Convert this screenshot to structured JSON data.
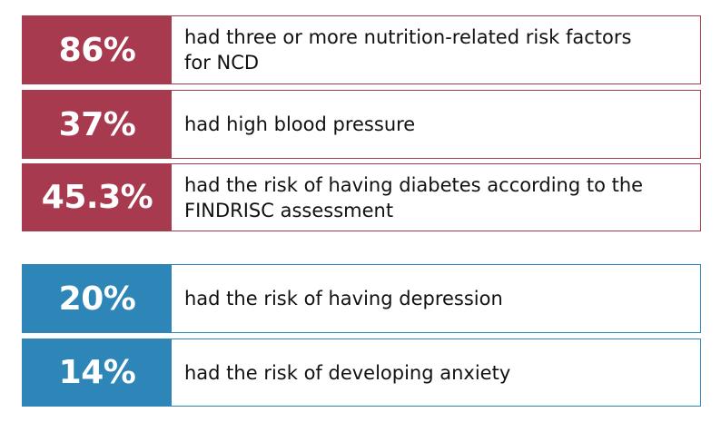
{
  "colors": {
    "red_group": "#a83a50",
    "blue_group": "#2e86b8"
  },
  "stats": [
    {
      "value": "86%",
      "line1": "had three or more nutrition-related risk factors",
      "line2": "for NCD"
    },
    {
      "value": "37%",
      "line1": "had high blood pressure",
      "line2": ""
    },
    {
      "value": "45.3%",
      "line1": "had the risk of having diabetes according to the",
      "line2": "FINDRISC assessment"
    },
    {
      "value": "20%",
      "line1": "had the risk of having depression",
      "line2": ""
    },
    {
      "value": "14%",
      "line1": "had the risk of developing anxiety",
      "line2": ""
    }
  ]
}
